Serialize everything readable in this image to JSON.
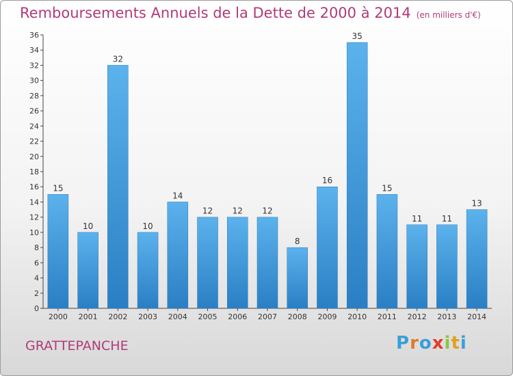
{
  "chart_data": {
    "type": "bar",
    "title": "Remboursements Annuels de la Dette de 2000 à 2014",
    "subtitle": "(en milliers d'€)",
    "xlabel": "",
    "ylabel": "",
    "categories": [
      "2000",
      "2001",
      "2002",
      "2003",
      "2004",
      "2005",
      "2006",
      "2007",
      "2008",
      "2009",
      "2010",
      "2011",
      "2012",
      "2013",
      "2014"
    ],
    "values": [
      15,
      10,
      32,
      10,
      14,
      12,
      12,
      12,
      8,
      16,
      35,
      15,
      11,
      11,
      13
    ],
    "ylim": [
      0,
      36
    ],
    "ytick_step": 2,
    "grid": false,
    "bar_color": "#3d9ee0"
  },
  "commune": "GRATTEPANCHE",
  "logo": {
    "text": "Proxiti",
    "colors": [
      "#3a9fd8",
      "#e07a2a",
      "#3a9fd8",
      "#e63a2a",
      "#8cc63f",
      "#e0a020",
      "#3a9fd8"
    ]
  }
}
